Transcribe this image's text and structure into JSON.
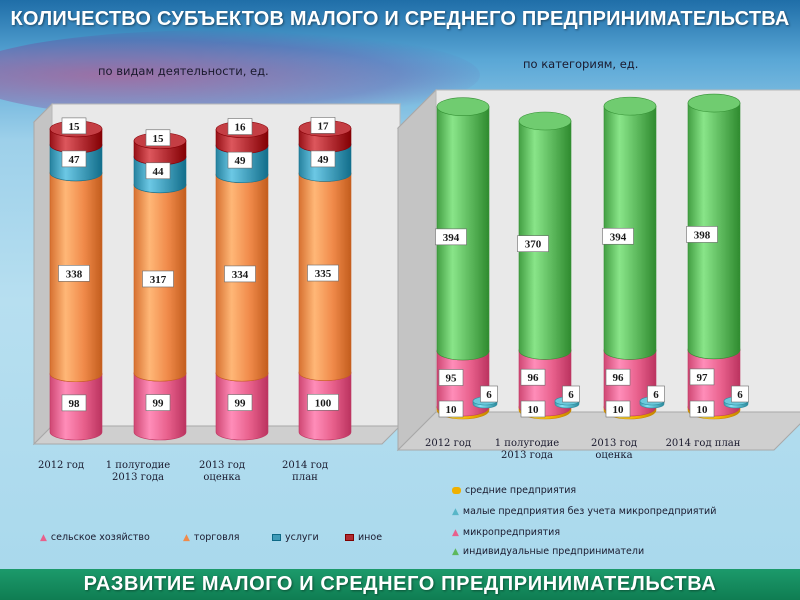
{
  "header": {
    "title": "КОЛИЧЕСТВО СУБЪЕКТОВ МАЛОГО И СРЕДНЕГО ПРЕДПРИНИМАТЕЛЬСТВА"
  },
  "footer": {
    "title": "РАЗВИТИЕ МАЛОГО И СРЕДНЕГО ПРЕДПРИНИМАТЕЛЬСТВА"
  },
  "colors": {
    "agri": "#e8608c",
    "trade": "#f08a4a",
    "services": "#3f9bb8",
    "other": "#b02a30",
    "medium": "#f0b000",
    "small": "#58b6c8",
    "micro": "#e8608c",
    "individual": "#5cb85c"
  },
  "chart_data": [
    {
      "type": "bar",
      "stacked": true,
      "title": "по видам деятельности, ед.",
      "categories": [
        "2012 год",
        "1 полугодие\n2013 года",
        "2013 год\nоценка",
        "2014 год\nплан"
      ],
      "series": [
        {
          "name": "сельское хозяйство",
          "values": [
            98,
            99,
            99,
            100
          ]
        },
        {
          "name": "торговля",
          "values": [
            338,
            317,
            334,
            335
          ]
        },
        {
          "name": "услуги",
          "values": [
            47,
            44,
            49,
            49
          ]
        },
        {
          "name": "иное",
          "values": [
            15,
            15,
            16,
            17
          ]
        }
      ],
      "grid": false,
      "legend": "bottom"
    },
    {
      "type": "bar",
      "stacked": true,
      "title": "по категориям, ед.",
      "categories": [
        "2012 год",
        "1 полугодие\n2013 года",
        "2013 год\nоценка",
        "2014 год план"
      ],
      "series": [
        {
          "name": "средние предприятия",
          "values": [
            10,
            10,
            10,
            10
          ]
        },
        {
          "name": "малые предприятия без учета микропредприятий",
          "values": [
            6,
            6,
            6,
            6
          ]
        },
        {
          "name": "микропредприятия",
          "values": [
            95,
            96,
            96,
            97
          ]
        },
        {
          "name": "индивидуальные предприниматели",
          "values": [
            394,
            370,
            394,
            398
          ]
        }
      ],
      "grid": false,
      "legend": "bottom"
    }
  ]
}
